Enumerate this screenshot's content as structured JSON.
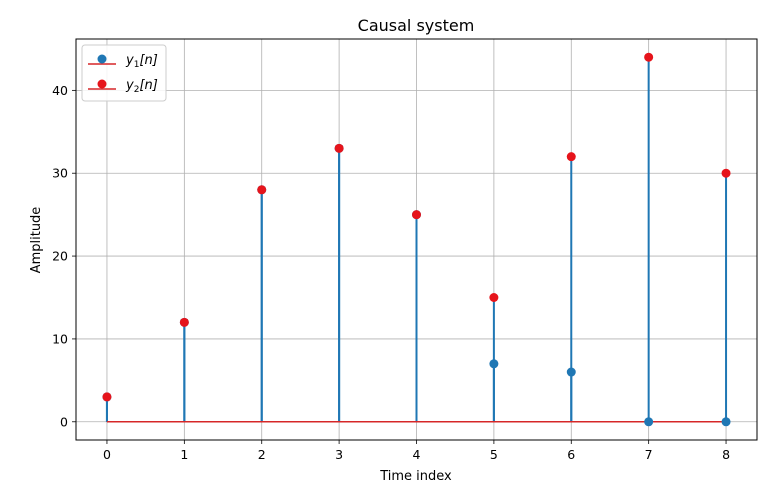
{
  "chart_data": {
    "type": "stem",
    "title": "Causal system",
    "xlabel": "Time index",
    "ylabel": "Amplitude",
    "xlim": [
      -0.4,
      8.4
    ],
    "ylim": [
      -2.2,
      46.2
    ],
    "xticks": [
      0,
      1,
      2,
      3,
      4,
      5,
      6,
      7,
      8
    ],
    "yticks": [
      0,
      10,
      20,
      30,
      40
    ],
    "grid": true,
    "legend_position": "top-left",
    "baseline": 0,
    "colors": {
      "stem": "#1f77b4",
      "baseline": "#d62728",
      "marker_y1": "#1f77b4",
      "marker_y2": "#e6141b"
    },
    "x": [
      0,
      1,
      2,
      3,
      4,
      5,
      6,
      7,
      8
    ],
    "series": [
      {
        "name": "y_1[n]",
        "name_base": "y",
        "name_sub": "1",
        "name_arg": "[n]",
        "values": [
          3,
          12,
          28,
          33,
          25,
          7,
          6,
          0,
          0
        ]
      },
      {
        "name": "y_2[n]",
        "name_base": "y",
        "name_sub": "2",
        "name_arg": "[n]",
        "values": [
          3,
          12,
          28,
          33,
          25,
          15,
          32,
          44,
          30
        ]
      }
    ]
  }
}
